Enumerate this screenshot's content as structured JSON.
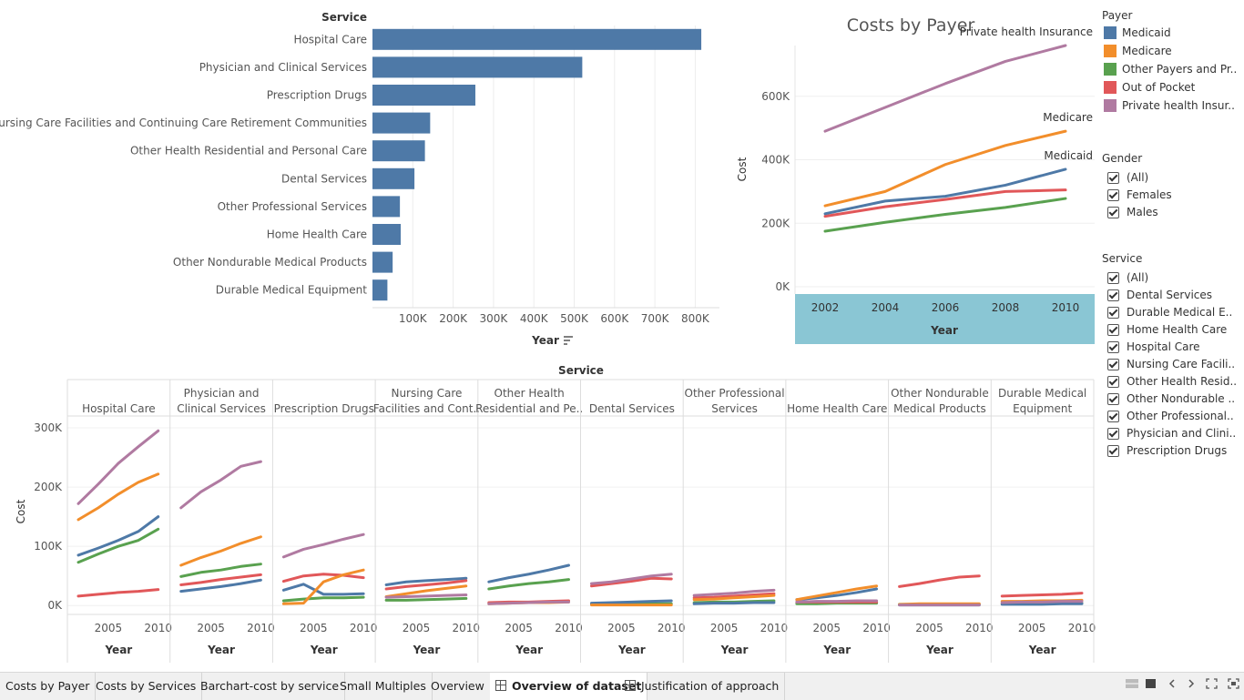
{
  "bar_chart": {
    "header": "Service",
    "sort_axis_label": "Year",
    "chart_data": {
      "type": "bar",
      "orientation": "horizontal",
      "categories": [
        "Hospital Care",
        "Physician and Clinical Services",
        "Prescription Drugs",
        "Nursing Care Facilities and Continuing Care Retirement Communities",
        "Other Health Residential and Personal Care",
        "Dental Services",
        "Other Professional Services",
        "Home Health Care",
        "Other Nondurable Medical Products",
        "Durable Medical Equipment"
      ],
      "values": [
        815000,
        520000,
        255000,
        143000,
        130000,
        104000,
        68000,
        70000,
        50000,
        37000
      ],
      "xlim": [
        0,
        860000
      ],
      "ticks": [
        "100K",
        "200K",
        "300K",
        "400K",
        "500K",
        "600K",
        "700K",
        "800K"
      ],
      "tick_values": [
        100000,
        200000,
        300000,
        400000,
        500000,
        600000,
        700000,
        800000
      ],
      "color": "#4e79a7",
      "xlabel": "Year",
      "grid": true
    }
  },
  "payer_chart": {
    "chart_data": {
      "type": "line",
      "title": "Costs by Payer",
      "xlabel": "Year",
      "ylabel": "Cost",
      "x": [
        2002,
        2004,
        2006,
        2008,
        2010
      ],
      "ylim": [
        0,
        760000
      ],
      "yticks": [
        "0K",
        "200K",
        "400K",
        "600K"
      ],
      "ytick_values": [
        0,
        200000,
        400000,
        600000
      ],
      "series": [
        {
          "name": "Private health Insurance",
          "color": "#b07aa1",
          "values": [
            490000,
            565000,
            640000,
            710000,
            760000
          ],
          "label": "Private health Insurance"
        },
        {
          "name": "Medicare",
          "color": "#f28e2b",
          "values": [
            255000,
            300000,
            385000,
            445000,
            490000
          ],
          "label": "Medicare"
        },
        {
          "name": "Medicaid",
          "color": "#4e79a7",
          "values": [
            230000,
            270000,
            285000,
            320000,
            370000
          ],
          "label": "Medicaid"
        },
        {
          "name": "Out of Pocket",
          "color": "#e15759",
          "values": [
            222000,
            252000,
            275000,
            300000,
            305000
          ],
          "label": ""
        },
        {
          "name": "Other Payers and Programs",
          "color": "#59a14f",
          "values": [
            175000,
            203000,
            228000,
            250000,
            278000
          ],
          "label": ""
        }
      ]
    }
  },
  "small_multiples": {
    "header": "Service",
    "ylabel": "Cost",
    "yticks": [
      "0K",
      "100K",
      "200K",
      "300K"
    ],
    "ytick_values": [
      0,
      100000,
      200000,
      300000
    ],
    "xtick_labels": [
      "2005",
      "2010"
    ],
    "xlabel": "Year",
    "panels": [
      {
        "title": [
          "Hospital Care"
        ],
        "x": [
          2002,
          2004,
          2006,
          2008,
          2010
        ],
        "series": {
          "Private health Insurance": [
            172000,
            205000,
            240000,
            268000,
            295000
          ],
          "Medicare": [
            145000,
            165000,
            188000,
            208000,
            222000
          ],
          "Medicaid": [
            85000,
            97000,
            110000,
            125000,
            150000
          ],
          "Other Payers and Programs": [
            73000,
            87000,
            100000,
            110000,
            129000
          ],
          "Out of Pocket": [
            16000,
            19000,
            22000,
            24000,
            27000
          ]
        }
      },
      {
        "title": [
          "Physician and",
          "Clinical Services"
        ],
        "x": [
          2002,
          2004,
          2006,
          2008,
          2010
        ],
        "series": {
          "Private health Insurance": [
            165000,
            192000,
            212000,
            235000,
            243000
          ],
          "Medicare": [
            68000,
            81000,
            92000,
            105000,
            116000
          ],
          "Medicaid": [
            24000,
            28000,
            32000,
            37000,
            43000
          ],
          "Other Payers and Programs": [
            49000,
            56000,
            60000,
            66000,
            70000
          ],
          "Out of Pocket": [
            35000,
            39000,
            44000,
            48000,
            52000
          ]
        }
      },
      {
        "title": [
          "Prescription Drugs"
        ],
        "x": [
          2002,
          2004,
          2006,
          2008,
          2010
        ],
        "series": {
          "Private health Insurance": [
            82000,
            95000,
            103000,
            112000,
            120000
          ],
          "Medicare": [
            3000,
            4000,
            40000,
            52000,
            60000
          ],
          "Medicaid": [
            26000,
            36000,
            19000,
            19000,
            20000
          ],
          "Other Payers and Programs": [
            8000,
            11000,
            13000,
            13000,
            14000
          ],
          "Out of Pocket": [
            41000,
            50000,
            53000,
            51000,
            47000
          ]
        }
      },
      {
        "title": [
          "Nursing Care",
          "Facilities and Cont.."
        ],
        "x": [
          2002,
          2004,
          2006,
          2008,
          2010
        ],
        "series": {
          "Private health Insurance": [
            14000,
            15000,
            16000,
            17000,
            18000
          ],
          "Medicare": [
            15000,
            20000,
            25000,
            29000,
            33000
          ],
          "Medicaid": [
            35000,
            40000,
            42000,
            44000,
            46000
          ],
          "Other Payers and Programs": [
            9000,
            9000,
            10000,
            11000,
            12000
          ],
          "Out of Pocket": [
            28000,
            32000,
            35000,
            38000,
            42000
          ]
        }
      },
      {
        "title": [
          "Other Health",
          "Residential and Pe.."
        ],
        "x": [
          2002,
          2004,
          2006,
          2008,
          2010
        ],
        "series": {
          "Private health Insurance": [
            3000,
            4000,
            5000,
            6000,
            6000
          ],
          "Medicare": [
            3000,
            4000,
            5000,
            5000,
            6000
          ],
          "Medicaid": [
            40000,
            47000,
            53000,
            60000,
            68000
          ],
          "Other Payers and Programs": [
            28000,
            33000,
            37000,
            40000,
            44000
          ],
          "Out of Pocket": [
            5000,
            6000,
            6000,
            7000,
            8000
          ]
        }
      },
      {
        "title": [
          "Dental Services"
        ],
        "x": [
          2002,
          2004,
          2006,
          2008,
          2010
        ],
        "series": {
          "Private health Insurance": [
            37000,
            40000,
            45000,
            50000,
            53000
          ],
          "Medicare": [
            1000,
            1000,
            1000,
            1000,
            1000
          ],
          "Medicaid": [
            4000,
            5000,
            6000,
            7000,
            8000
          ],
          "Other Payers and Programs": [
            2000,
            2000,
            3000,
            3000,
            3000
          ],
          "Out of Pocket": [
            33000,
            37000,
            41000,
            46000,
            45000
          ]
        }
      },
      {
        "title": [
          "Other Professional",
          "Services"
        ],
        "x": [
          2002,
          2004,
          2006,
          2008,
          2010
        ],
        "series": {
          "Private health Insurance": [
            17000,
            19000,
            21000,
            24000,
            26000
          ],
          "Medicare": [
            10000,
            11000,
            13000,
            15000,
            17000
          ],
          "Medicaid": [
            3000,
            4000,
            4000,
            5000,
            5000
          ],
          "Other Payers and Programs": [
            5000,
            6000,
            6000,
            7000,
            8000
          ],
          "Out of Pocket": [
            13000,
            14000,
            16000,
            18000,
            20000
          ]
        }
      },
      {
        "title": [
          "Home Health Care"
        ],
        "x": [
          2002,
          2004,
          2006,
          2008,
          2010
        ],
        "series": {
          "Private health Insurance": [
            6000,
            7000,
            7000,
            8000,
            8000
          ],
          "Medicare": [
            10000,
            16000,
            22000,
            28000,
            33000
          ],
          "Medicaid": [
            10000,
            13000,
            17000,
            22000,
            28000
          ],
          "Other Payers and Programs": [
            3000,
            3000,
            4000,
            4000,
            4000
          ],
          "Out of Pocket": [
            6000,
            6000,
            6000,
            6000,
            6000
          ]
        }
      },
      {
        "title": [
          "Other Nondurable",
          "Medical Products"
        ],
        "x": [
          2002,
          2004,
          2006,
          2008,
          2010
        ],
        "series": {
          "Private health Insurance": [
            1000,
            1000,
            1000,
            1000,
            1000
          ],
          "Medicare": [
            2000,
            3000,
            3000,
            3000,
            3000
          ],
          "Medicaid": [
            1000,
            1000,
            1000,
            1000,
            1000
          ],
          "Other Payers and Programs": [
            2000,
            2000,
            2000,
            2000,
            2000
          ],
          "Out of Pocket": [
            32000,
            37000,
            43000,
            48000,
            50000
          ]
        }
      },
      {
        "title": [
          "Durable Medical",
          "Equipment"
        ],
        "x": [
          2002,
          2004,
          2006,
          2008,
          2010
        ],
        "series": {
          "Private health Insurance": [
            5000,
            6000,
            6000,
            7000,
            7000
          ],
          "Medicare": [
            7000,
            7000,
            8000,
            8000,
            9000
          ],
          "Medicaid": [
            2000,
            2000,
            2000,
            3000,
            3000
          ],
          "Other Payers and Programs": [
            3000,
            3000,
            3000,
            4000,
            4000
          ],
          "Out of Pocket": [
            16000,
            17000,
            18000,
            19000,
            21000
          ]
        }
      }
    ]
  },
  "payer_legend": {
    "title": "Payer",
    "items": [
      {
        "label": "Medicaid",
        "color": "#4e79a7"
      },
      {
        "label": "Medicare",
        "color": "#f28e2b"
      },
      {
        "label": "Other Payers and Pr..",
        "color": "#59a14f"
      },
      {
        "label": "Out of Pocket",
        "color": "#e15759"
      },
      {
        "label": "Private health Insur..",
        "color": "#b07aa1"
      }
    ]
  },
  "gender_filter": {
    "title": "Gender",
    "items": [
      "(All)",
      "Females",
      "Males"
    ]
  },
  "service_filter": {
    "title": "Service",
    "items": [
      "(All)",
      "Dental Services",
      "Durable Medical E..",
      "Home Health Care",
      "Hospital Care",
      "Nursing Care Facili..",
      "Other Health Resid..",
      "Other Nondurable ..",
      "Other Professional..",
      "Physician and Clini..",
      "Prescription Drugs"
    ]
  },
  "tabs": [
    {
      "label": "Costs by Payer",
      "icon": false
    },
    {
      "label": "Costs by Services",
      "icon": false
    },
    {
      "label": "Barchart-cost by service",
      "icon": false
    },
    {
      "label": "Small Multiples",
      "icon": false
    },
    {
      "label": "Overview",
      "icon": false
    },
    {
      "label": "Overview of dataset",
      "icon": true,
      "active": true
    },
    {
      "label": "Justification of approach",
      "icon": true
    }
  ],
  "colors": {
    "Medicaid": "#4e79a7",
    "Medicare": "#f28e2b",
    "Other Payers and Programs": "#59a14f",
    "Out of Pocket": "#e15759",
    "Private health Insurance": "#b07aa1",
    "axis_band": "#8ac6d4"
  }
}
